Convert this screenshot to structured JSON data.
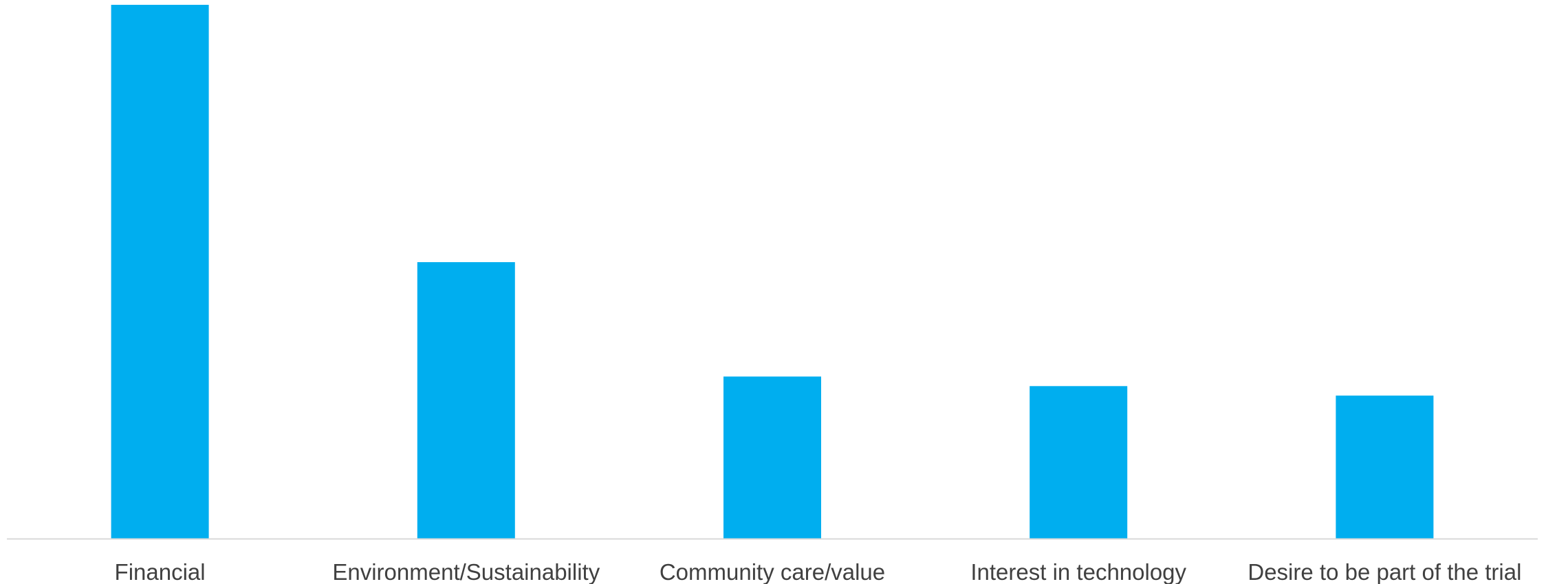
{
  "chart_data": {
    "type": "bar",
    "categories": [
      "Financial",
      "Environment/Sustainability",
      "Community care/value",
      "Interest in technology",
      "Desire to be part of the trial"
    ],
    "values": [
      56,
      29,
      17,
      16,
      15
    ],
    "ylim": [
      0,
      56
    ],
    "grid": false,
    "legend": "none",
    "bar_color": "#00AEEF",
    "axis_color": "#D9D9D9",
    "label_color": "#404040"
  }
}
